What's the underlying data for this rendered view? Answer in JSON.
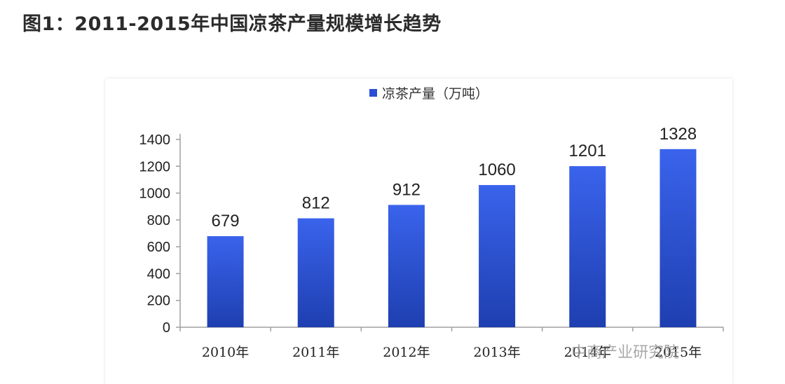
{
  "title": "图1：2011-2015年中国凉茶产量规模增长趋势",
  "watermark": "中商产业研究院",
  "colors": {
    "bar_top": "#3a63ec",
    "bar_bottom": "#1e3fb0",
    "axis": "#a0a0a0",
    "legend_swatch": "#2a4fd6"
  },
  "chart_data": {
    "type": "bar",
    "title": "",
    "legend": [
      "凉茶产量（万吨）"
    ],
    "legend_position": "top-center",
    "categories": [
      "2010年",
      "2011年",
      "2012年",
      "2013年",
      "2014年",
      "2015年"
    ],
    "series": [
      {
        "name": "凉茶产量（万吨）",
        "values": [
          679,
          812,
          912,
          1060,
          1201,
          1328
        ],
        "labels": [
          "679",
          "812",
          "912",
          "1060",
          "1201",
          "1328"
        ]
      }
    ],
    "yticks": [
      "0",
      "200",
      "400",
      "600",
      "800",
      "1000",
      "1200",
      "1400"
    ],
    "ylim": [
      0,
      1400
    ],
    "grid": false,
    "xlabel": "",
    "ylabel": ""
  }
}
